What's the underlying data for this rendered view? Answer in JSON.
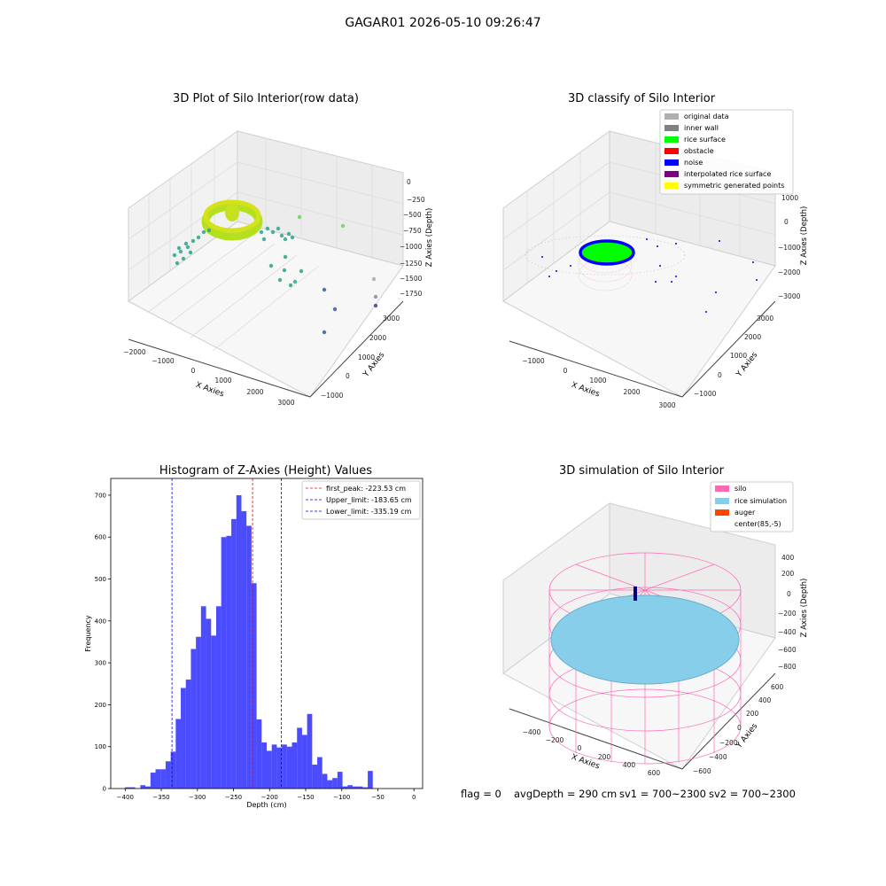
{
  "figure": {
    "suptitle": "GAGAR01 2026-05-10 09:26:47",
    "status": {
      "flag": "flag = 0",
      "avg_depth": "avgDepth = 290 cm",
      "sv1": "sv1 = 700~2300",
      "sv2": "sv2 = 700~2300"
    }
  },
  "panels": {
    "raw": {
      "title": "3D Plot of Silo Interior(row data)",
      "xlabel": "X Axies",
      "ylabel": "Y Axies",
      "zlabel": "Z Axies (Depth)",
      "xticks": [
        "−2000",
        "−1000",
        "0",
        "1000",
        "2000",
        "3000"
      ],
      "yticks": [
        "−1000",
        "0",
        "1000",
        "2000",
        "3000"
      ],
      "zticks": [
        "0",
        "−250",
        "−500",
        "−750",
        "−1000",
        "−1250",
        "−1500",
        "−1750"
      ],
      "colors": {
        "ring": "#b5e020",
        "points": "#2aa58a"
      }
    },
    "classify": {
      "title": "3D classify of Silo Interior",
      "xlabel": "X Axies",
      "ylabel": "Y Axies",
      "zlabel": "Z Axies (Depth)",
      "xticks": [
        "−1000",
        "0",
        "1000",
        "2000",
        "3000"
      ],
      "yticks": [
        "−1000",
        "0",
        "1000",
        "2000",
        "3000"
      ],
      "zticks": [
        "1000",
        "0",
        "−1000",
        "−2000",
        "−3000"
      ],
      "legend": [
        {
          "label": "original data",
          "color": "#b0b0b0"
        },
        {
          "label": "inner wall",
          "color": "#808080"
        },
        {
          "label": "rice surface",
          "color": "#00ff00"
        },
        {
          "label": "obstacle",
          "color": "#ff0000"
        },
        {
          "label": "noise",
          "color": "#0000ff"
        },
        {
          "label": "interpolated rice surface",
          "color": "#800080"
        },
        {
          "label": "symmetric generated points",
          "color": "#ffff00"
        }
      ]
    },
    "simulation": {
      "title": "3D simulation of Silo Interior",
      "xlabel": "X Axies",
      "ylabel": "Y Axies",
      "zlabel": "Z Axies (Depth)",
      "xticks": [
        "−400",
        "−200",
        "0",
        "200",
        "400",
        "600"
      ],
      "yticks": [
        "−600",
        "−400",
        "−200",
        "0",
        "200",
        "400",
        "600"
      ],
      "zticks": [
        "400",
        "200",
        "0",
        "−200",
        "−400",
        "−600",
        "−800"
      ],
      "legend": [
        {
          "label": "silo",
          "color": "#ff69b4"
        },
        {
          "label": "rice simulation",
          "color": "#87ceeb"
        },
        {
          "label": "auger",
          "color": "#ff4500"
        },
        {
          "label": "center(85,-5)",
          "color": "#ffffff"
        }
      ]
    }
  },
  "chart_data": [
    {
      "type": "bar",
      "title": "Histogram of Z-Axies (Height) Values",
      "xlabel": "Depth (cm)",
      "ylabel": "Frequency",
      "xlim": [
        -420,
        12
      ],
      "ylim": [
        0,
        740
      ],
      "xticks": [
        -400,
        -350,
        -300,
        -250,
        -200,
        -150,
        -100,
        -50,
        0
      ],
      "yticks": [
        0,
        100,
        200,
        300,
        400,
        500,
        600,
        700
      ],
      "bin_width": 7,
      "bins": [
        {
          "start": -400,
          "count": 3
        },
        {
          "start": -393,
          "count": 3
        },
        {
          "start": -386,
          "count": 0
        },
        {
          "start": -379,
          "count": 8
        },
        {
          "start": -372,
          "count": 5
        },
        {
          "start": -365,
          "count": 38
        },
        {
          "start": -358,
          "count": 46
        },
        {
          "start": -351,
          "count": 46
        },
        {
          "start": -344,
          "count": 65
        },
        {
          "start": -337,
          "count": 88
        },
        {
          "start": -330,
          "count": 166
        },
        {
          "start": -323,
          "count": 240
        },
        {
          "start": -316,
          "count": 260
        },
        {
          "start": -309,
          "count": 333
        },
        {
          "start": -302,
          "count": 362
        },
        {
          "start": -295,
          "count": 435
        },
        {
          "start": -288,
          "count": 405
        },
        {
          "start": -281,
          "count": 365
        },
        {
          "start": -274,
          "count": 435
        },
        {
          "start": -267,
          "count": 600
        },
        {
          "start": -260,
          "count": 603
        },
        {
          "start": -253,
          "count": 643
        },
        {
          "start": -246,
          "count": 700
        },
        {
          "start": -239,
          "count": 662
        },
        {
          "start": -232,
          "count": 627
        },
        {
          "start": -225,
          "count": 490
        },
        {
          "start": -218,
          "count": 165
        },
        {
          "start": -211,
          "count": 110
        },
        {
          "start": -204,
          "count": 90
        },
        {
          "start": -197,
          "count": 105
        },
        {
          "start": -190,
          "count": 98
        },
        {
          "start": -183,
          "count": 105
        },
        {
          "start": -176,
          "count": 100
        },
        {
          "start": -169,
          "count": 110
        },
        {
          "start": -162,
          "count": 145
        },
        {
          "start": -155,
          "count": 128
        },
        {
          "start": -148,
          "count": 178
        },
        {
          "start": -141,
          "count": 57
        },
        {
          "start": -134,
          "count": 75
        },
        {
          "start": -127,
          "count": 35
        },
        {
          "start": -120,
          "count": 20
        },
        {
          "start": -113,
          "count": 25
        },
        {
          "start": -106,
          "count": 40
        },
        {
          "start": -99,
          "count": 5
        },
        {
          "start": -92,
          "count": 8
        },
        {
          "start": -85,
          "count": 5
        },
        {
          "start": -78,
          "count": 5
        },
        {
          "start": -71,
          "count": 3
        },
        {
          "start": -64,
          "count": 42
        }
      ],
      "bar_color": "#0000ff",
      "reference_lines": [
        {
          "x": -223.53,
          "label": "first_peak: -223.53 cm",
          "color": "#ff0000"
        },
        {
          "x": -183.65,
          "label": "Upper_limit: -183.65 cm",
          "color": "#0000ff"
        },
        {
          "x": -335.19,
          "label": "Lower_limit: -335.19 cm",
          "color": "#0000ff"
        }
      ],
      "legend_position": "top-right"
    }
  ]
}
